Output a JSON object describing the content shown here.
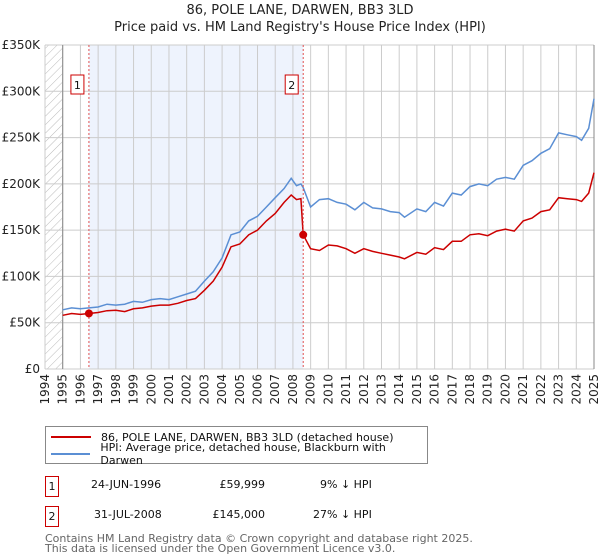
{
  "title_line1": "86, POLE LANE, DARWEN, BB3 3LD",
  "title_line2": "Price paid vs. HM Land Registry's House Price Index (HPI)",
  "colors": {
    "property": "#cc0000",
    "hpi": "#5b8fd4",
    "shade": "#eef3fd",
    "marker_box": "#cc0000"
  },
  "chart_data": {
    "type": "line",
    "title": "86, POLE LANE, DARWEN, BB3 3LD — Price paid vs. HM Land Registry's House Price Index (HPI)",
    "xlim": [
      1994,
      2025
    ],
    "ylim": [
      0,
      350000
    ],
    "x_ticks": [
      1994,
      1995,
      1996,
      1997,
      1998,
      1999,
      2000,
      2001,
      2002,
      2003,
      2004,
      2005,
      2006,
      2007,
      2008,
      2009,
      2010,
      2011,
      2012,
      2013,
      2014,
      2015,
      2016,
      2017,
      2018,
      2019,
      2020,
      2021,
      2022,
      2023,
      2024,
      2025
    ],
    "y_ticks": [
      0,
      50000,
      100000,
      150000,
      200000,
      250000,
      300000,
      350000
    ],
    "y_tick_labels": [
      "£0",
      "£50K",
      "£100K",
      "£150K",
      "£200K",
      "£250K",
      "£300K",
      "£350K"
    ],
    "grid": true,
    "hatched_until": 1995,
    "shaded_range": [
      1996.48,
      2008.58
    ],
    "series": [
      {
        "name": "86, POLE LANE, DARWEN, BB3 3LD (detached house)",
        "color": "#cc0000",
        "x": [
          1995,
          1995.5,
          1996,
          1996.48,
          1997,
          1997.5,
          1998,
          1998.5,
          1999,
          1999.5,
          2000,
          2000.5,
          2001,
          2001.5,
          2002,
          2002.5,
          2003,
          2003.5,
          2004,
          2004.5,
          2005,
          2005.5,
          2006,
          2006.5,
          2007,
          2007.5,
          2007.9,
          2008.2,
          2008.45,
          2008.58,
          2009,
          2009.5,
          2010,
          2010.5,
          2011,
          2011.5,
          2012,
          2012.5,
          2013,
          2013.5,
          2014,
          2014.3,
          2015,
          2015.5,
          2016,
          2016.5,
          2017,
          2017.5,
          2018,
          2018.5,
          2019,
          2019.5,
          2020,
          2020.5,
          2021,
          2021.5,
          2022,
          2022.5,
          2023,
          2023.5,
          2024,
          2024.3,
          2024.7,
          2025
        ],
        "y": [
          58000,
          60000,
          59000,
          59999,
          61000,
          63000,
          63500,
          62000,
          65000,
          66000,
          68000,
          69000,
          69000,
          71000,
          74000,
          76000,
          85000,
          95000,
          110000,
          132000,
          135000,
          145000,
          150000,
          160000,
          168000,
          180000,
          188000,
          183000,
          184000,
          145000,
          130000,
          128000,
          134000,
          133000,
          130000,
          125000,
          130000,
          127000,
          125000,
          123000,
          121000,
          119000,
          126000,
          124000,
          131000,
          129000,
          138000,
          138000,
          145000,
          146000,
          144000,
          149000,
          151000,
          149000,
          160000,
          163000,
          170000,
          172000,
          185000,
          184000,
          183000,
          181000,
          190000,
          212000
        ]
      },
      {
        "name": "HPI: Average price, detached house, Blackburn with Darwen",
        "color": "#5b8fd4",
        "x": [
          1995,
          1995.5,
          1996,
          1996.48,
          1997,
          1997.5,
          1998,
          1998.5,
          1999,
          1999.5,
          2000,
          2000.5,
          2001,
          2001.5,
          2002,
          2002.5,
          2003,
          2003.5,
          2004,
          2004.5,
          2005,
          2005.5,
          2006,
          2006.5,
          2007,
          2007.5,
          2007.9,
          2008.2,
          2008.45,
          2008.58,
          2009,
          2009.5,
          2010,
          2010.5,
          2011,
          2011.5,
          2012,
          2012.5,
          2013,
          2013.5,
          2014,
          2014.3,
          2015,
          2015.5,
          2016,
          2016.5,
          2017,
          2017.5,
          2018,
          2018.5,
          2019,
          2019.5,
          2020,
          2020.5,
          2021,
          2021.5,
          2022,
          2022.5,
          2023,
          2023.5,
          2024,
          2024.3,
          2024.7,
          2025
        ],
        "y": [
          64000,
          66000,
          65000,
          66000,
          67000,
          70000,
          69000,
          70000,
          73000,
          72000,
          75000,
          76000,
          75000,
          78000,
          81000,
          84000,
          95000,
          105000,
          120000,
          145000,
          148000,
          160000,
          165000,
          175000,
          185000,
          195000,
          206000,
          198000,
          200000,
          196000,
          175000,
          183000,
          184000,
          180000,
          178000,
          172000,
          180000,
          174000,
          173000,
          170000,
          169000,
          164000,
          173000,
          170000,
          180000,
          176000,
          190000,
          188000,
          197000,
          200000,
          198000,
          205000,
          207000,
          205000,
          220000,
          225000,
          233000,
          238000,
          255000,
          253000,
          251000,
          247000,
          260000,
          292000
        ]
      }
    ],
    "annotations": [
      {
        "label": "1",
        "x": 1996.48,
        "y": 59999
      },
      {
        "label": "2",
        "x": 2008.58,
        "y": 145000
      }
    ]
  },
  "legend": [
    {
      "label": "86, POLE LANE, DARWEN, BB3 3LD (detached house)",
      "color": "#cc0000"
    },
    {
      "label": "HPI: Average price, detached house, Blackburn with Darwen",
      "color": "#5b8fd4"
    }
  ],
  "transactions": [
    {
      "num": "1",
      "date": "24-JUN-1996",
      "price": "£59,999",
      "hpi": "9% ↓ HPI"
    },
    {
      "num": "2",
      "date": "31-JUL-2008",
      "price": "£145,000",
      "hpi": "27% ↓ HPI"
    }
  ],
  "footer_line1": "Contains HM Land Registry data © Crown copyright and database right 2025.",
  "footer_line2": "This data is licensed under the Open Government Licence v3.0."
}
